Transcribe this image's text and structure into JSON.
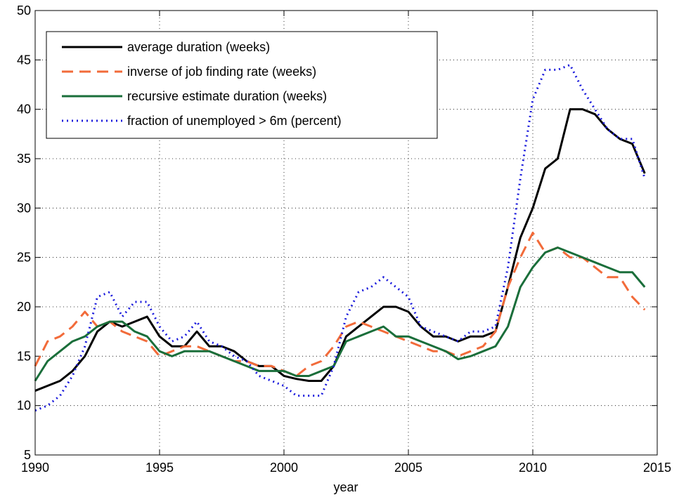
{
  "chart_data": {
    "type": "line",
    "xlabel": "year",
    "x": [
      1990,
      1990.5,
      1991,
      1991.5,
      1992,
      1992.5,
      1993,
      1993.5,
      1994,
      1994.5,
      1995,
      1995.5,
      1996,
      1996.5,
      1997,
      1997.5,
      1998,
      1998.5,
      1999,
      1999.5,
      2000,
      2000.5,
      2001,
      2001.5,
      2002,
      2002.5,
      2003,
      2003.5,
      2004,
      2004.5,
      2005,
      2005.5,
      2006,
      2006.5,
      2007,
      2007.5,
      2008,
      2008.5,
      2009,
      2009.5,
      2010,
      2010.5,
      2011,
      2011.5,
      2012,
      2012.5,
      2013,
      2013.5,
      2014,
      2014.5
    ],
    "series": [
      {
        "name": "average duration (weeks)",
        "color": "#000000",
        "dash": "solid",
        "values": [
          11.5,
          12,
          12.5,
          13.5,
          15,
          17.5,
          18.5,
          18,
          18.5,
          19,
          17,
          16,
          16,
          17.5,
          16,
          16,
          15.5,
          14.5,
          14,
          14,
          13,
          12.7,
          12.5,
          12.5,
          14,
          17,
          18,
          19,
          20,
          20,
          19.5,
          18,
          17,
          17,
          16.5,
          17,
          17,
          17.5,
          22,
          27,
          30,
          34,
          35,
          40,
          40,
          39.5,
          38,
          37,
          36.5,
          33.5
        ]
      },
      {
        "name": "inverse of job finding rate (weeks)",
        "color": "#f26b3a",
        "dash": "dashed",
        "values": [
          14,
          16.5,
          17,
          18,
          19.5,
          18,
          18.5,
          17.5,
          17,
          16.5,
          15,
          15.5,
          16,
          16,
          15.5,
          15,
          14.5,
          14.5,
          14,
          14,
          13.5,
          13,
          14,
          14.5,
          16,
          18,
          18.5,
          18,
          17.5,
          17,
          16.5,
          16,
          15.5,
          15.5,
          15,
          15.5,
          16,
          17.5,
          22,
          25,
          27.5,
          25.5,
          26,
          25,
          25,
          24,
          23,
          23,
          21,
          19.7
        ]
      },
      {
        "name": "recursive estimate duration (weeks)",
        "color": "#1a6e3a",
        "dash": "solid",
        "values": [
          12.5,
          14.5,
          15.5,
          16.5,
          17,
          18,
          18.5,
          18.5,
          17.5,
          17,
          15.5,
          15,
          15.5,
          15.5,
          15.5,
          15,
          14.5,
          14,
          13.5,
          13.5,
          13.5,
          13,
          13,
          13.5,
          14,
          16.5,
          17,
          17.5,
          18,
          17,
          17,
          16.5,
          16,
          15.5,
          14.7,
          15,
          15.5,
          16,
          18,
          22,
          24,
          25.5,
          26,
          25.5,
          25,
          24.5,
          24,
          23.5,
          23.5,
          22
        ]
      },
      {
        "name": "fraction of unemployed > 6m (percent)",
        "color": "#1a1adc",
        "dash": "dotted",
        "values": [
          9.5,
          10,
          11,
          13,
          16,
          21,
          21.5,
          19,
          20.5,
          20.5,
          18,
          16.5,
          17,
          18.5,
          16.5,
          16,
          15,
          14.5,
          13,
          12.5,
          12,
          11,
          11,
          11,
          14,
          19,
          21.5,
          22,
          23,
          22,
          21,
          18,
          17.5,
          17,
          16.5,
          17.5,
          17.5,
          18,
          24,
          33,
          41,
          44,
          44,
          44.5,
          42,
          40,
          38,
          37,
          37,
          33
        ]
      }
    ],
    "xlim": [
      1990,
      2015
    ],
    "xticks": [
      1990,
      1995,
      2000,
      2005,
      2010,
      2015
    ],
    "ylim": [
      5,
      50
    ],
    "yticks": [
      5,
      10,
      15,
      20,
      25,
      30,
      35,
      40,
      45,
      50
    ],
    "grid": true,
    "legend": "upper left"
  }
}
